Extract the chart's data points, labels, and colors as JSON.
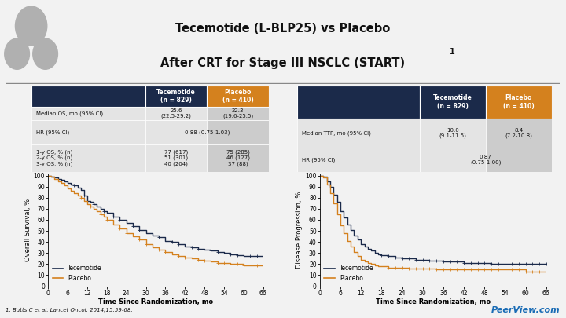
{
  "title_line1": "Tecemotide (L-BLP25) vs Placebo",
  "title_line2": "After CRT for Stage III NSCLC (START)",
  "title_superscript": "1",
  "bg_color": "#f2f2f2",
  "navy_color": "#1b2a4a",
  "orange_color": "#d4811e",
  "tece_color": "#1b2a4a",
  "placebo_color": "#d4811e",
  "footnote": "1. Butts C et al. Lancet Oncol. 2014;15:59-68.",
  "peerviewtext": "PeerView.com",
  "os_xlabel": "Time Since Randomization, mo",
  "os_ylabel": "Overall Survival, %",
  "ttp_xlabel": "Time Since Randomization, mo",
  "ttp_ylabel": "Disease Progression, %",
  "os_tece_t": [
    0,
    1,
    2,
    3,
    4,
    5,
    6,
    7,
    8,
    9,
    10,
    11,
    12,
    13,
    14,
    15,
    16,
    17,
    18,
    20,
    22,
    24,
    26,
    28,
    30,
    32,
    34,
    36,
    38,
    40,
    42,
    44,
    46,
    48,
    50,
    52,
    54,
    56,
    58,
    60,
    62,
    64,
    66
  ],
  "os_tece_s": [
    100,
    99,
    98,
    97,
    96,
    95,
    93,
    92,
    91,
    89,
    87,
    82,
    77,
    76,
    74,
    72,
    70,
    68,
    66,
    63,
    60,
    57,
    54,
    51,
    48,
    46,
    44,
    41,
    40,
    38,
    36,
    35,
    34,
    33,
    32,
    31,
    30,
    29,
    28,
    27,
    27,
    27,
    27
  ],
  "os_plac_t": [
    0,
    1,
    2,
    3,
    4,
    5,
    6,
    7,
    8,
    9,
    10,
    11,
    12,
    13,
    14,
    15,
    16,
    17,
    18,
    20,
    22,
    24,
    26,
    28,
    30,
    32,
    34,
    36,
    38,
    40,
    42,
    44,
    46,
    48,
    50,
    52,
    54,
    56,
    58,
    60,
    62,
    64,
    66
  ],
  "os_plac_s": [
    100,
    99,
    97,
    95,
    93,
    91,
    88,
    86,
    84,
    82,
    80,
    77,
    74,
    72,
    70,
    68,
    65,
    63,
    60,
    56,
    52,
    48,
    45,
    42,
    38,
    35,
    33,
    31,
    29,
    27,
    26,
    25,
    24,
    23,
    22,
    21,
    21,
    20,
    20,
    19,
    19,
    19,
    19
  ],
  "ttp_tece_t": [
    0,
    1,
    2,
    3,
    4,
    5,
    6,
    7,
    8,
    9,
    10,
    11,
    12,
    13,
    14,
    15,
    16,
    17,
    18,
    20,
    22,
    24,
    26,
    28,
    30,
    32,
    34,
    36,
    38,
    40,
    42,
    44,
    46,
    48,
    50,
    52,
    54,
    56,
    58,
    60,
    62,
    64,
    66
  ],
  "ttp_tece_s": [
    100,
    99,
    95,
    90,
    83,
    76,
    68,
    62,
    56,
    51,
    46,
    42,
    38,
    36,
    34,
    32,
    30,
    29,
    28,
    27,
    26,
    25,
    25,
    24,
    24,
    23,
    23,
    22,
    22,
    22,
    21,
    21,
    21,
    21,
    20,
    20,
    20,
    20,
    20,
    20,
    20,
    20,
    20
  ],
  "ttp_plac_t": [
    0,
    1,
    2,
    3,
    4,
    5,
    6,
    7,
    8,
    9,
    10,
    11,
    12,
    13,
    14,
    15,
    16,
    17,
    18,
    20,
    22,
    24,
    26,
    28,
    30,
    32,
    34,
    36,
    38,
    40,
    42,
    44,
    46,
    48,
    50,
    52,
    54,
    56,
    58,
    60,
    62,
    64,
    66
  ],
  "ttp_plac_s": [
    100,
    98,
    92,
    84,
    75,
    65,
    55,
    48,
    41,
    36,
    31,
    27,
    24,
    22,
    21,
    20,
    19,
    18,
    18,
    17,
    17,
    17,
    16,
    16,
    16,
    16,
    15,
    15,
    15,
    15,
    15,
    15,
    15,
    15,
    15,
    15,
    15,
    15,
    15,
    13,
    13,
    13,
    13
  ]
}
